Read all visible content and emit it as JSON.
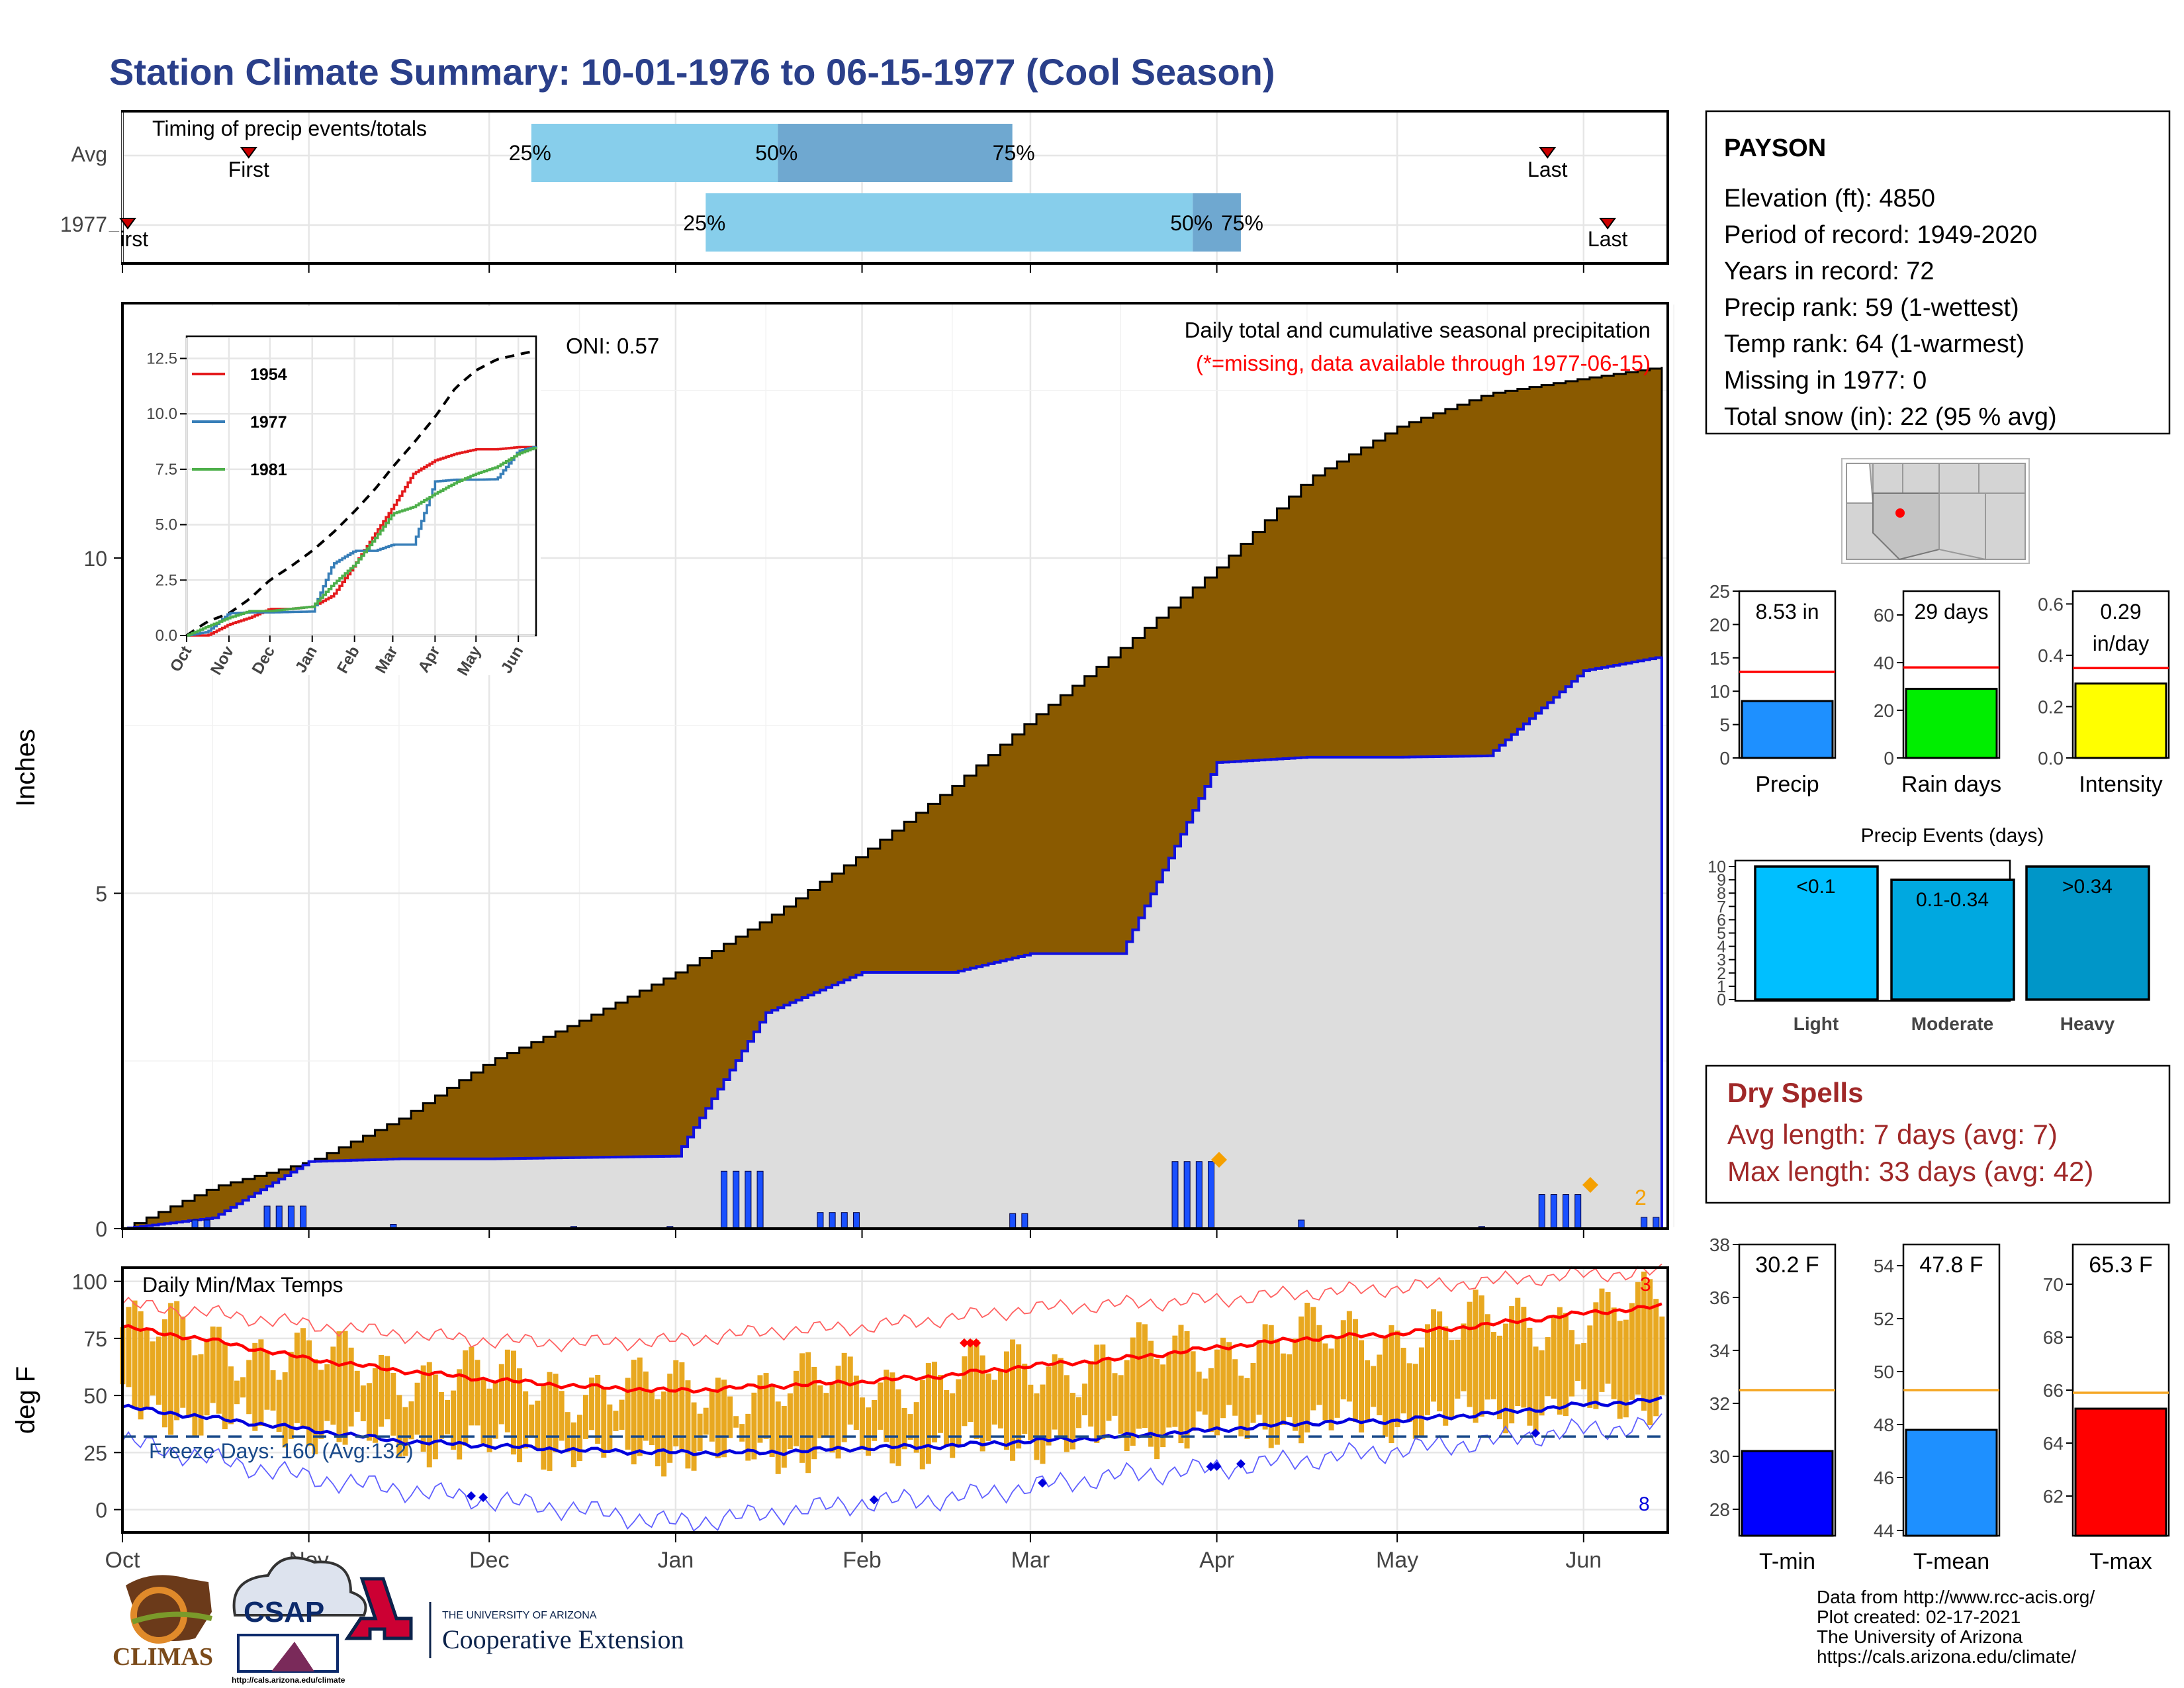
{
  "title": "Station Climate Summary: 10-01-1976 to 06-15-1977 (Cool Season)",
  "months": [
    "Oct",
    "Nov",
    "Dec",
    "Jan",
    "Feb",
    "Mar",
    "Apr",
    "May",
    "Jun"
  ],
  "colors": {
    "title": "#2a3f8a",
    "cum_precip": "#8a5a00",
    "precip_bar": "#1a50ff",
    "temp_bar": "#e8a820",
    "tmax": "#ff0000",
    "tmin": "#0000dd",
    "dry": "#a02828",
    "gray": "#dddddd"
  },
  "timing": {
    "label": "Timing of precip events/totals",
    "rows": [
      "Avg",
      "1977"
    ],
    "avg": {
      "first_label": "First",
      "last_label": "Last",
      "p25": "25%",
      "p50": "50%",
      "p75": "75%",
      "first_day": 21,
      "last_day": 237,
      "q25_day": 68,
      "q50_day": 109,
      "q75_day": 148
    },
    "y1977": {
      "first_label": "First",
      "last_label": "Last",
      "p25": "25%",
      "p50": "50%",
      "p75": "75%",
      "first_day": 0,
      "last_day": 247,
      "q25_day": 97,
      "q50_day": 178,
      "q75_day": 186
    }
  },
  "precip_panel": {
    "ylabel": "Inches",
    "yticks": [
      "0",
      "5",
      "10"
    ],
    "oni": "ONI: 0.57",
    "caption": "Daily total and cumulative seasonal precipitation",
    "missing_note": "(*=missing, data available through 1977-06-15)",
    "snow_count": "2"
  },
  "inset": {
    "yticks": [
      "0.0",
      "2.5",
      "5.0",
      "7.5",
      "10.0",
      "12.5"
    ],
    "months": [
      "Oct",
      "Nov",
      "Dec",
      "Jan",
      "Feb",
      "Mar",
      "Apr",
      "May",
      "Jun"
    ],
    "legend": [
      {
        "name": "1954",
        "color": "#e41a1c"
      },
      {
        "name": "1977",
        "color": "#377eb8"
      },
      {
        "name": "1981",
        "color": "#4daf4a"
      }
    ]
  },
  "temp_panel": {
    "ylabel": "deg F",
    "label": "Daily Min/Max Temps",
    "yticks": [
      "0",
      "25",
      "50",
      "75",
      "100"
    ],
    "freeze_text": "Freeze Days: 160 (Avg:132)",
    "record_high_count": "3",
    "record_low_count": "8"
  },
  "info": {
    "station": "PAYSON",
    "lines": [
      "Elevation (ft): 4850",
      "Period of record: 1949-2020",
      "Years in record: 72",
      "Precip rank: 59 (1-wettest)",
      "Temp rank: 64 (1-warmest)",
      "Missing in 1977: 0",
      "Total snow (in): 22 (95 % avg)"
    ]
  },
  "precip_stats": [
    {
      "label": "Precip",
      "value_label": "8.53 in",
      "yticks": [
        "0",
        "5",
        "10",
        "15",
        "20",
        "25"
      ],
      "ymax": 25,
      "value": 8.53,
      "avg": 12.9,
      "color": "#1e90ff"
    },
    {
      "label": "Rain days",
      "value_label": "29 days",
      "yticks": [
        "0",
        "20",
        "40",
        "60"
      ],
      "ymax": 70,
      "value": 29,
      "avg": 38,
      "color": "#00ee00"
    },
    {
      "label": "Intensity",
      "value_label_1": "0.29",
      "value_label_2": "in/day",
      "yticks": [
        "0.0",
        "0.2",
        "0.4",
        "0.6"
      ],
      "ymax": 0.65,
      "value": 0.29,
      "avg": 0.35,
      "color": "#ffff00"
    }
  ],
  "events": {
    "title": "Precip Events (days)",
    "yticks": [
      "0",
      "1",
      "2",
      "3",
      "4",
      "5",
      "6",
      "7",
      "8",
      "9",
      "10"
    ],
    "bars": [
      {
        "label": "Light",
        "value": 10,
        "text": "<0.1",
        "color": "#00bfff"
      },
      {
        "label": "Moderate",
        "value": 9,
        "text": "0.1-0.34",
        "color": "#00a8e0"
      },
      {
        "label": "Heavy",
        "value": 10,
        "text": ">0.34",
        "color": "#0096c8"
      }
    ]
  },
  "dry_spells": {
    "title": "Dry Spells",
    "avg": "Avg length: 7 days (avg: 7)",
    "max": "Max length: 33 days (avg: 42)"
  },
  "temp_stats": [
    {
      "label": "T-min",
      "value_label": "30.2 F",
      "yticks": [
        "28",
        "30",
        "32",
        "34",
        "36",
        "38"
      ],
      "ymin": 27,
      "ymax": 38,
      "value": 30.2,
      "avg": 32.5,
      "color": "#0000ff"
    },
    {
      "label": "T-mean",
      "value_label": "47.8 F",
      "yticks": [
        "44",
        "46",
        "48",
        "50",
        "52",
        "54"
      ],
      "ymin": 43.8,
      "ymax": 54.8,
      "value": 47.8,
      "avg": 49.3,
      "color": "#1e90ff"
    },
    {
      "label": "T-max",
      "value_label": "65.3 F",
      "yticks": [
        "62",
        "64",
        "66",
        "68",
        "70"
      ],
      "ymin": 60.5,
      "ymax": 71.5,
      "value": 65.3,
      "avg": 65.9,
      "color": "#ff0000"
    }
  ],
  "credits": [
    "Data from http://www.rcc-acis.org/",
    "Plot created: 02-17-2021",
    "The University of Arizona",
    "https://cals.arizona.edu/climate/"
  ],
  "logos": {
    "climas": "CLIMAS",
    "csap": "CSAP",
    "csap_url": "http://cals.arizona.edu/climate",
    "ua_line1": "THE UNIVERSITY OF ARIZONA",
    "ua_line2": "Cooperative Extension"
  },
  "chart_data": {
    "type": "area",
    "title": "Station Climate Summary: 10-01-1976 to 06-15-1977 (Cool Season)",
    "ylabel": "Inches",
    "ylim": [
      0,
      13.8
    ],
    "x": [
      "Oct 1",
      "Oct 16",
      "Nov 1",
      "Nov 16",
      "Dec 1",
      "Dec 16",
      "Jan 1",
      "Jan 16",
      "Feb 1",
      "Feb 16",
      "Mar 1",
      "Mar 16",
      "Apr 1",
      "Apr 16",
      "May 1",
      "May 16",
      "Jun 1",
      "Jun 14"
    ],
    "series": [
      {
        "name": "1977",
        "values": [
          0.0,
          0.16,
          1.0,
          1.04,
          1.04,
          1.06,
          1.08,
          3.22,
          3.82,
          3.82,
          4.1,
          4.1,
          6.95,
          7.03,
          7.03,
          7.05,
          8.32,
          8.53
        ]
      }
    ],
    "avg_cumulative": [
      0.0,
      0.62,
      1.0,
      1.64,
      2.5,
      3.1,
      3.82,
      4.62,
      5.6,
      6.6,
      7.6,
      8.66,
      9.86,
      11.18,
      11.96,
      12.45,
      12.68,
      12.85
    ],
    "temps": {
      "ylim": [
        -10,
        106
      ],
      "freeze_line": 32,
      "avg_tmax": [
        80,
        74,
        66,
        61,
        57,
        54,
        52,
        54,
        56,
        59,
        63,
        66,
        71,
        75,
        77,
        81,
        86,
        89
      ],
      "avg_tmin": [
        45,
        40,
        35,
        30,
        28,
        26,
        25,
        25,
        27,
        28,
        30,
        32,
        35,
        38,
        39,
        42,
        46,
        48
      ],
      "record_high": [
        90,
        86,
        81,
        77,
        74,
        73,
        74,
        78,
        80,
        84,
        88,
        90,
        92,
        95,
        97,
        100,
        103,
        104
      ],
      "record_low": [
        30,
        22,
        14,
        9,
        4,
        0,
        -6,
        -2,
        3,
        5,
        10,
        15,
        18,
        22,
        26,
        30,
        35,
        37
      ]
    }
  }
}
